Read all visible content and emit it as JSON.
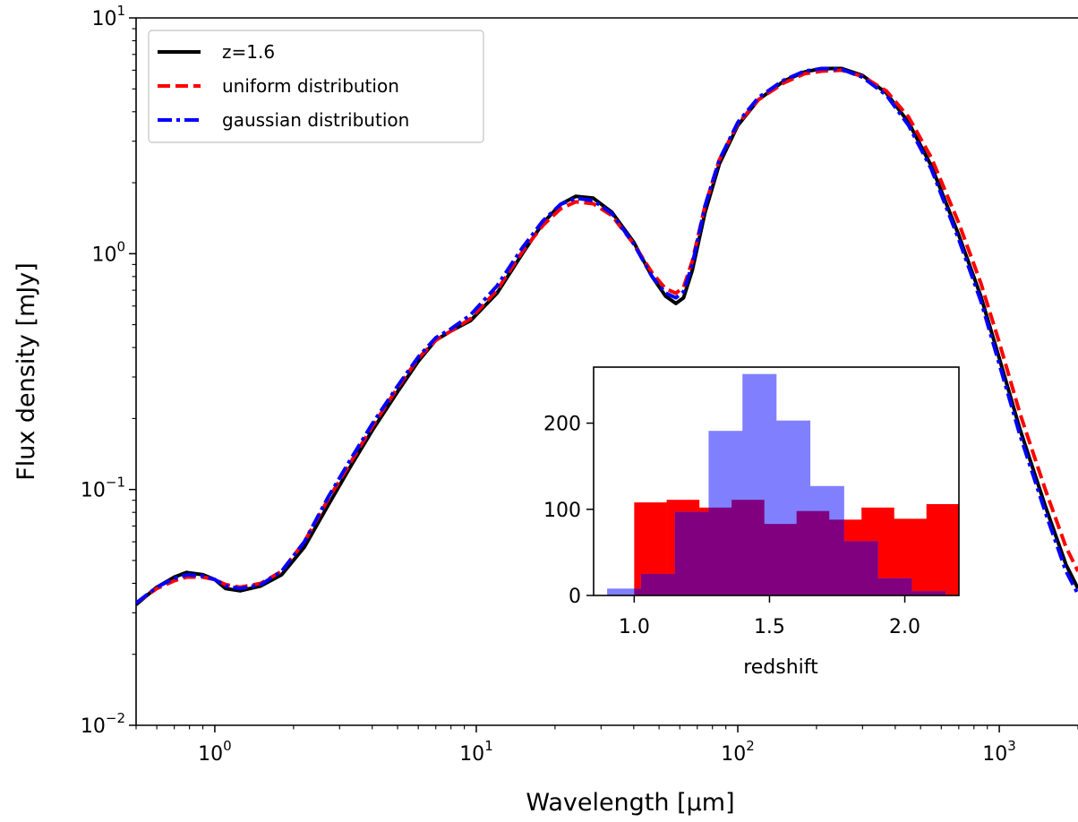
{
  "chart_data": [
    {
      "type": "line",
      "xlabel": "Wavelength [μm]",
      "ylabel": "Flux density [mJy]",
      "xscale": "log",
      "yscale": "log",
      "xlim": [
        0.5,
        2000
      ],
      "ylim": [
        0.01,
        10
      ],
      "x_ticks": [
        {
          "value": 1,
          "base": "10",
          "exp": "0"
        },
        {
          "value": 10,
          "base": "10",
          "exp": "1"
        },
        {
          "value": 100,
          "base": "10",
          "exp": "2"
        },
        {
          "value": 1000,
          "base": "10",
          "exp": "3"
        }
      ],
      "y_ticks": [
        {
          "value": 0.01,
          "base": "10",
          "exp": "−2"
        },
        {
          "value": 0.1,
          "base": "10",
          "exp": "−1"
        },
        {
          "value": 1,
          "base": "10",
          "exp": "0"
        },
        {
          "value": 10,
          "base": "10",
          "exp": "1"
        }
      ],
      "grid": false,
      "legend_position": "top-left",
      "series": [
        {
          "name": "z=1.6",
          "color": "#000000",
          "style": "solid",
          "x": [
            0.5,
            0.6,
            0.7,
            0.78,
            0.9,
            1.0,
            1.1,
            1.25,
            1.5,
            1.8,
            2.2,
            2.7,
            3.3,
            4,
            5,
            6,
            7,
            8,
            9.5,
            12,
            15,
            18,
            21,
            24,
            28,
            33,
            40,
            47,
            53,
            58,
            62,
            67,
            75,
            85,
            100,
            120,
            150,
            180,
            210,
            250,
            300,
            370,
            450,
            550,
            700,
            850,
            1000,
            1200,
            1500,
            1800,
            2000
          ],
          "y": [
            0.0325,
            0.0385,
            0.0425,
            0.0445,
            0.0435,
            0.0415,
            0.038,
            0.0372,
            0.039,
            0.0435,
            0.057,
            0.085,
            0.125,
            0.178,
            0.26,
            0.35,
            0.43,
            0.47,
            0.52,
            0.68,
            1.0,
            1.35,
            1.62,
            1.75,
            1.72,
            1.5,
            1.12,
            0.8,
            0.66,
            0.615,
            0.65,
            0.85,
            1.5,
            2.4,
            3.5,
            4.5,
            5.4,
            5.9,
            6.1,
            6.1,
            5.7,
            4.8,
            3.6,
            2.35,
            1.2,
            0.66,
            0.36,
            0.18,
            0.085,
            0.048,
            0.038
          ]
        },
        {
          "name": "uniform distribution",
          "color": "#ff0000",
          "style": "dashed",
          "x": [
            0.5,
            0.6,
            0.7,
            0.78,
            0.9,
            1.0,
            1.1,
            1.25,
            1.5,
            1.8,
            2.2,
            2.7,
            3.3,
            4,
            5,
            6,
            7,
            8,
            9.5,
            12,
            15,
            18,
            21,
            24,
            28,
            33,
            40,
            47,
            53,
            58,
            62,
            67,
            75,
            85,
            100,
            120,
            150,
            180,
            210,
            250,
            300,
            370,
            450,
            550,
            700,
            850,
            1000,
            1200,
            1500,
            1800,
            2000
          ],
          "y": [
            0.033,
            0.038,
            0.041,
            0.0425,
            0.0425,
            0.0415,
            0.0395,
            0.0385,
            0.04,
            0.045,
            0.06,
            0.09,
            0.13,
            0.185,
            0.27,
            0.36,
            0.43,
            0.47,
            0.53,
            0.7,
            1.02,
            1.32,
            1.55,
            1.66,
            1.63,
            1.45,
            1.1,
            0.83,
            0.71,
            0.68,
            0.72,
            0.93,
            1.6,
            2.5,
            3.55,
            4.5,
            5.3,
            5.8,
            5.95,
            6.0,
            5.65,
            4.9,
            3.8,
            2.55,
            1.35,
            0.75,
            0.42,
            0.21,
            0.1,
            0.057,
            0.045
          ]
        },
        {
          "name": "gaussian distribution",
          "color": "#0000ff",
          "style": "dashdot",
          "x": [
            0.5,
            0.6,
            0.7,
            0.78,
            0.9,
            1.0,
            1.1,
            1.25,
            1.5,
            1.8,
            2.2,
            2.7,
            3.3,
            4,
            5,
            6,
            7,
            8,
            9.5,
            12,
            15,
            18,
            21,
            24,
            28,
            33,
            40,
            47,
            53,
            58,
            62,
            67,
            75,
            85,
            100,
            120,
            150,
            180,
            210,
            250,
            300,
            370,
            450,
            550,
            700,
            850,
            1000,
            1200,
            1500,
            1800,
            2000
          ],
          "y": [
            0.033,
            0.0385,
            0.042,
            0.0435,
            0.043,
            0.0415,
            0.039,
            0.038,
            0.0395,
            0.045,
            0.06,
            0.092,
            0.134,
            0.19,
            0.275,
            0.365,
            0.44,
            0.48,
            0.55,
            0.73,
            1.06,
            1.38,
            1.62,
            1.72,
            1.68,
            1.48,
            1.1,
            0.8,
            0.68,
            0.65,
            0.69,
            0.9,
            1.6,
            2.5,
            3.6,
            4.6,
            5.45,
            5.95,
            6.1,
            6.05,
            5.6,
            4.7,
            3.5,
            2.28,
            1.15,
            0.63,
            0.34,
            0.17,
            0.08,
            0.045,
            0.036
          ]
        }
      ]
    },
    {
      "type": "bar",
      "xlabel": "redshift",
      "ylabel": "",
      "xlim": [
        0.85,
        2.2
      ],
      "ylim": [
        0,
        265
      ],
      "x_ticks": [
        "1.0",
        "1.5",
        "2.0"
      ],
      "y_ticks": [
        "0",
        "100",
        "200"
      ],
      "overlap_color": "#800080",
      "series": [
        {
          "name": "uniform",
          "color": "#ff0000",
          "bin_edges": [
            1.0,
            1.12,
            1.24,
            1.36,
            1.48,
            1.6,
            1.72,
            1.84,
            1.96,
            2.08,
            2.2
          ],
          "counts": [
            108,
            111,
            102,
            111,
            83,
            98,
            88,
            102,
            89,
            106
          ]
        },
        {
          "name": "gaussian",
          "color": "#8080ff",
          "bin_edges": [
            0.9,
            1.025,
            1.15,
            1.275,
            1.4,
            1.525,
            1.65,
            1.775,
            1.9,
            2.025,
            2.15
          ],
          "counts": [
            8,
            25,
            97,
            191,
            257,
            203,
            127,
            63,
            20,
            5
          ]
        }
      ]
    }
  ]
}
